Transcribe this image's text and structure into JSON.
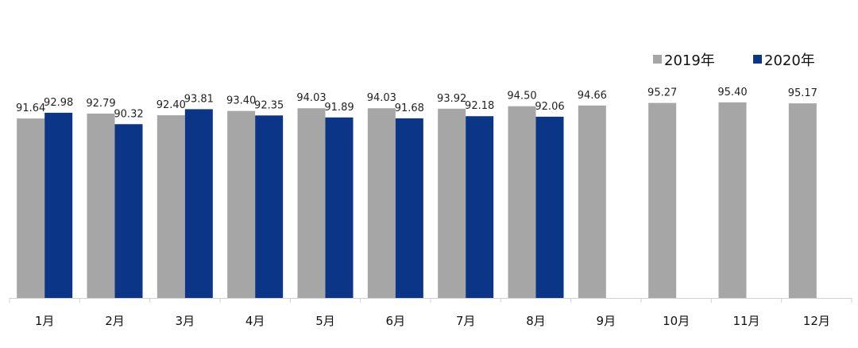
{
  "chart_data": {
    "type": "bar",
    "title": "",
    "xlabel": "",
    "ylabel": "",
    "categories": [
      "1月",
      "2月",
      "3月",
      "4月",
      "5月",
      "6月",
      "7月",
      "8月",
      "9月",
      "10月",
      "11月",
      "12月"
    ],
    "series": [
      {
        "name": "2019年",
        "color": "#A6A6A6",
        "values": [
          91.64,
          92.79,
          92.4,
          93.4,
          94.03,
          94.03,
          93.92,
          94.5,
          94.66,
          95.27,
          95.4,
          95.17
        ],
        "labels": [
          "91.64",
          "92.79",
          "92.40",
          "93.40",
          "94.03",
          "94.03",
          "93.92",
          "94.50",
          "94.66",
          "95.27",
          "95.40",
          "95.17"
        ]
      },
      {
        "name": "2020年",
        "color": "#0B3687",
        "values": [
          92.98,
          90.32,
          93.81,
          92.35,
          91.89,
          91.68,
          92.18,
          92.06,
          null,
          null,
          null,
          null
        ],
        "labels": [
          "92.98",
          "90.32",
          "93.81",
          "92.35",
          "91.89",
          "91.68",
          "92.18",
          "92.06",
          "",
          "",
          "",
          ""
        ]
      }
    ],
    "ylim": [
      0,
      100
    ],
    "grid": false,
    "legend_position": "top-right"
  }
}
